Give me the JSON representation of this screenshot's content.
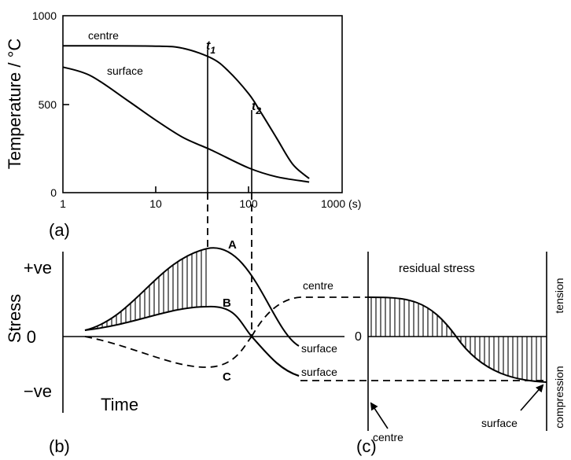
{
  "panel_a": {
    "label": "(a)",
    "y_axis_label": "Temperature / °C",
    "y_ticks": [
      "1000",
      "500",
      "0"
    ],
    "x_ticks": [
      "1",
      "10",
      "100",
      "1000 (s)"
    ],
    "curve_labels": {
      "centre": "centre",
      "surface": "surface"
    },
    "markers": {
      "t1": "t",
      "t1_sub": "1",
      "t2": "t",
      "t2_sub": "2"
    }
  },
  "panel_b": {
    "label": "(b)",
    "y_axis_label": "Stress",
    "y_ticks": [
      "+ve",
      "0",
      "−ve"
    ],
    "x_axis_label": "Time",
    "curve_letters": {
      "a": "A",
      "b": "B",
      "c": "C"
    },
    "curve_labels": {
      "centre": "centre",
      "surface_upper": "surface",
      "surface_lower": "surface"
    }
  },
  "panel_c": {
    "label": "(c)",
    "title": "residual stress",
    "zero": "0",
    "side_labels": {
      "tension": "tension",
      "compression": "compression"
    },
    "arrow_labels": {
      "centre": "centre",
      "surface": "surface"
    }
  },
  "chart_data": [
    {
      "type": "line",
      "x_scale": "log",
      "xlim": [
        1,
        1000
      ],
      "ylim": [
        0,
        1000
      ],
      "ylabel": "Temperature / °C",
      "series": [
        {
          "name": "centre",
          "x": [
            1,
            10,
            20,
            40,
            60,
            100,
            130,
            200,
            300,
            450
          ],
          "y": [
            830,
            828,
            815,
            760,
            690,
            560,
            470,
            310,
            160,
            80
          ]
        },
        {
          "name": "surface",
          "x": [
            1,
            2,
            5,
            10,
            20,
            40,
            100,
            200,
            450
          ],
          "y": [
            710,
            660,
            520,
            410,
            310,
            240,
            140,
            90,
            60
          ]
        }
      ]
    }
  ]
}
